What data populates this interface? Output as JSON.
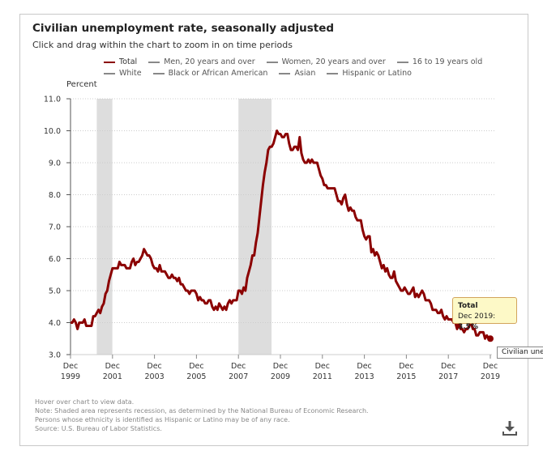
{
  "title": "Civilian unemployment rate, seasonally adjusted",
  "subtitle": "Click and drag within the chart to zoom in on time periods",
  "legend": [
    {
      "label": "Total",
      "color": "#8b0000"
    },
    {
      "label": "Men, 20 years and over",
      "color": "#888888"
    },
    {
      "label": "Women, 20 years and over",
      "color": "#888888"
    },
    {
      "label": "16 to 19 years old",
      "color": "#888888"
    },
    {
      "label": "White",
      "color": "#888888"
    },
    {
      "label": "Black or African American",
      "color": "#888888"
    },
    {
      "label": "Asian",
      "color": "#888888"
    },
    {
      "label": "Hispanic or Latino",
      "color": "#888888"
    }
  ],
  "tooltip": {
    "series": "Total",
    "date_label": "Dec 2019:",
    "value_label": "3.5%"
  },
  "tooltip2": "Civilian unem",
  "footer": [
    "Hover over chart to view data.",
    "Note: Shaded area represents recession, as determined by the National Bureau of Economic Research.",
    "Persons whose ethnicity is identified as Hispanic or Latino may be of any race.",
    "Source: U.S. Bureau of Labor Statistics."
  ],
  "download_icon": "download-icon",
  "chart_data": {
    "type": "line",
    "title": "Civilian unemployment rate, seasonally adjusted",
    "ylabel": "Percent",
    "ylim": [
      3.0,
      11.0
    ],
    "yticks": [
      "3.0",
      "4.0",
      "5.0",
      "6.0",
      "7.0",
      "8.0",
      "9.0",
      "10.0",
      "11.0"
    ],
    "xticks": [
      [
        "Dec",
        "1999"
      ],
      [
        "Dec",
        "2001"
      ],
      [
        "Dec",
        "2003"
      ],
      [
        "Dec",
        "2005"
      ],
      [
        "Dec",
        "2007"
      ],
      [
        "Dec",
        "2009"
      ],
      [
        "Dec",
        "2011"
      ],
      [
        "Dec",
        "2013"
      ],
      [
        "Dec",
        "2015"
      ],
      [
        "Dec",
        "2017"
      ],
      [
        "Dec",
        "2019"
      ]
    ],
    "xlim": [
      "Dec 1999",
      "Dec 2019"
    ],
    "grid": "horizontal dotted",
    "legend_position": "top",
    "recessions": [
      [
        "Mar 2001",
        "Nov 2001"
      ],
      [
        "Dec 2007",
        "Jun 2009"
      ]
    ],
    "recession_color": "#dddddd",
    "series": [
      {
        "name": "Total",
        "color": "#8b0000",
        "monthly_values": {
          "1999": [
            null,
            null,
            null,
            null,
            null,
            null,
            null,
            null,
            null,
            null,
            null,
            4.0
          ],
          "2000": [
            4.0,
            4.1,
            4.0,
            3.8,
            4.0,
            4.0,
            4.0,
            4.1,
            3.9,
            3.9,
            3.9,
            3.9
          ],
          "2001": [
            4.2,
            4.2,
            4.3,
            4.4,
            4.3,
            4.5,
            4.6,
            4.9,
            5.0,
            5.3,
            5.5,
            5.7
          ],
          "2002": [
            5.7,
            5.7,
            5.7,
            5.9,
            5.8,
            5.8,
            5.8,
            5.7,
            5.7,
            5.7,
            5.9,
            6.0
          ],
          "2003": [
            5.8,
            5.9,
            5.9,
            6.0,
            6.1,
            6.3,
            6.2,
            6.1,
            6.1,
            6.0,
            5.8,
            5.7
          ],
          "2004": [
            5.7,
            5.6,
            5.8,
            5.6,
            5.6,
            5.6,
            5.5,
            5.4,
            5.4,
            5.5,
            5.4,
            5.4
          ],
          "2005": [
            5.3,
            5.4,
            5.2,
            5.2,
            5.1,
            5.0,
            5.0,
            4.9,
            5.0,
            5.0,
            5.0,
            4.9
          ],
          "2006": [
            4.7,
            4.8,
            4.7,
            4.7,
            4.6,
            4.6,
            4.7,
            4.7,
            4.5,
            4.4,
            4.5,
            4.4
          ],
          "2007": [
            4.6,
            4.5,
            4.4,
            4.5,
            4.4,
            4.6,
            4.7,
            4.6,
            4.7,
            4.7,
            4.7,
            5.0
          ],
          "2008": [
            5.0,
            4.9,
            5.1,
            5.0,
            5.4,
            5.6,
            5.8,
            6.1,
            6.1,
            6.5,
            6.8,
            7.3
          ],
          "2009": [
            7.8,
            8.3,
            8.7,
            9.0,
            9.4,
            9.5,
            9.5,
            9.6,
            9.8,
            10.0,
            9.9,
            9.9
          ],
          "2010": [
            9.8,
            9.8,
            9.9,
            9.9,
            9.6,
            9.4,
            9.4,
            9.5,
            9.5,
            9.4,
            9.8,
            9.3
          ],
          "2011": [
            9.1,
            9.0,
            9.0,
            9.1,
            9.0,
            9.1,
            9.0,
            9.0,
            9.0,
            8.8,
            8.6,
            8.5
          ],
          "2012": [
            8.3,
            8.3,
            8.2,
            8.2,
            8.2,
            8.2,
            8.2,
            8.0,
            7.8,
            7.8,
            7.7,
            7.9
          ],
          "2013": [
            8.0,
            7.7,
            7.5,
            7.6,
            7.5,
            7.5,
            7.3,
            7.2,
            7.2,
            7.2,
            6.9,
            6.7
          ],
          "2014": [
            6.6,
            6.7,
            6.7,
            6.2,
            6.3,
            6.1,
            6.2,
            6.1,
            5.9,
            5.7,
            5.8,
            5.6
          ],
          "2015": [
            5.7,
            5.5,
            5.4,
            5.4,
            5.6,
            5.3,
            5.2,
            5.1,
            5.0,
            5.0,
            5.1,
            5.0
          ],
          "2016": [
            4.9,
            4.9,
            5.0,
            5.1,
            4.8,
            4.9,
            4.8,
            4.9,
            5.0,
            4.9,
            4.7,
            4.7
          ],
          "2017": [
            4.7,
            4.6,
            4.4,
            4.4,
            4.4,
            4.3,
            4.3,
            4.4,
            4.2,
            4.1,
            4.2,
            4.1
          ],
          "2018": [
            4.1,
            4.1,
            4.0,
            4.0,
            3.8,
            4.0,
            3.8,
            3.8,
            3.7,
            3.8,
            3.8,
            3.9
          ],
          "2019": [
            4.0,
            3.8,
            3.8,
            3.6,
            3.6,
            3.7,
            3.7,
            3.7,
            3.5,
            3.6,
            3.5,
            3.5
          ]
        }
      }
    ]
  }
}
